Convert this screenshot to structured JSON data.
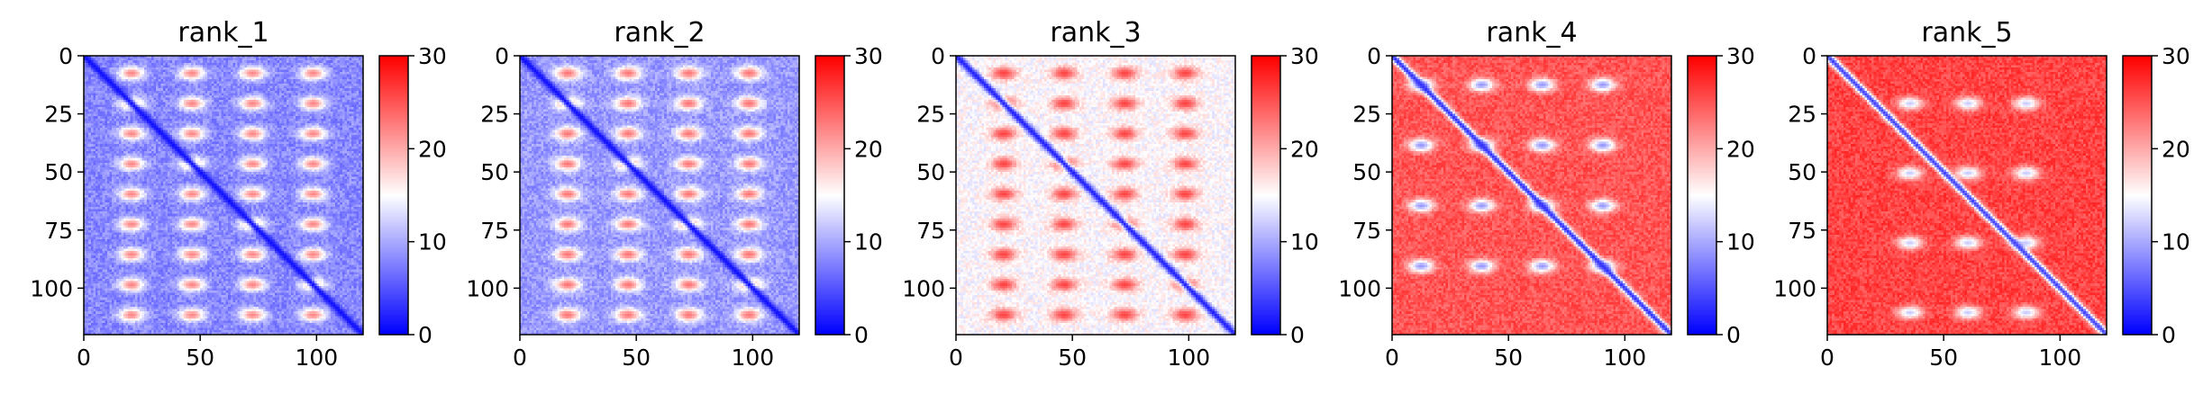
{
  "chart_data": [
    {
      "type": "heatmap",
      "title": "rank_1",
      "xlim": [
        0,
        120
      ],
      "ylim": [
        120,
        0
      ],
      "xticks": [
        0,
        50,
        100
      ],
      "yticks": [
        0,
        25,
        50,
        75,
        100
      ],
      "colorbar": {
        "min": 0,
        "max": 30,
        "ticks": [
          0,
          10,
          20,
          30
        ],
        "cmap": "bwr"
      },
      "matrix_size": 120,
      "background_level": 8,
      "diagonal_level": 1,
      "blob_level": 22,
      "blob_rows": [
        7,
        20,
        33,
        46,
        59,
        72,
        85,
        98,
        111
      ],
      "blob_cols": [
        20,
        46,
        72,
        98
      ]
    },
    {
      "type": "heatmap",
      "title": "rank_2",
      "xlim": [
        0,
        120
      ],
      "ylim": [
        120,
        0
      ],
      "xticks": [
        0,
        50,
        100
      ],
      "yticks": [
        0,
        25,
        50,
        75,
        100
      ],
      "colorbar": {
        "min": 0,
        "max": 30,
        "ticks": [
          0,
          10,
          20,
          30
        ],
        "cmap": "bwr"
      },
      "matrix_size": 120,
      "background_level": 9,
      "diagonal_level": 1,
      "blob_level": 23,
      "blob_rows": [
        7,
        20,
        33,
        46,
        59,
        72,
        85,
        98,
        111
      ],
      "blob_cols": [
        20,
        46,
        72,
        98
      ]
    },
    {
      "type": "heatmap",
      "title": "rank_3",
      "xlim": [
        0,
        120
      ],
      "ylim": [
        120,
        0
      ],
      "xticks": [
        0,
        50,
        100
      ],
      "yticks": [
        0,
        25,
        50,
        75,
        100
      ],
      "colorbar": {
        "min": 0,
        "max": 30,
        "ticks": [
          0,
          10,
          20,
          30
        ],
        "cmap": "bwr"
      },
      "matrix_size": 120,
      "background_level": 15,
      "diagonal_level": 2,
      "blob_level": 26,
      "blob_rows": [
        7,
        20,
        33,
        46,
        59,
        72,
        85,
        98,
        111
      ],
      "blob_cols": [
        20,
        46,
        72,
        98
      ]
    },
    {
      "type": "heatmap",
      "title": "rank_4",
      "xlim": [
        0,
        120
      ],
      "ylim": [
        120,
        0
      ],
      "xticks": [
        0,
        50,
        100
      ],
      "yticks": [
        0,
        25,
        50,
        75,
        100
      ],
      "colorbar": {
        "min": 0,
        "max": 30,
        "ticks": [
          0,
          10,
          20,
          30
        ],
        "cmap": "bwr"
      },
      "matrix_size": 120,
      "background_level": 25,
      "diagonal_level": 3,
      "blob_level": 9,
      "blob_rows": [
        12,
        38,
        64,
        90
      ],
      "blob_cols": [
        12,
        38,
        64,
        90
      ]
    },
    {
      "type": "heatmap",
      "title": "rank_5",
      "xlim": [
        0,
        120
      ],
      "ylim": [
        120,
        0
      ],
      "xticks": [
        0,
        50,
        100
      ],
      "yticks": [
        0,
        25,
        50,
        75,
        100
      ],
      "colorbar": {
        "min": 0,
        "max": 30,
        "ticks": [
          0,
          10,
          20,
          30
        ],
        "cmap": "bwr"
      },
      "matrix_size": 120,
      "background_level": 26,
      "diagonal_level": 4,
      "blob_level": 12,
      "blob_rows": [
        20,
        50,
        80,
        110
      ],
      "blob_cols": [
        35,
        60,
        85
      ]
    }
  ]
}
